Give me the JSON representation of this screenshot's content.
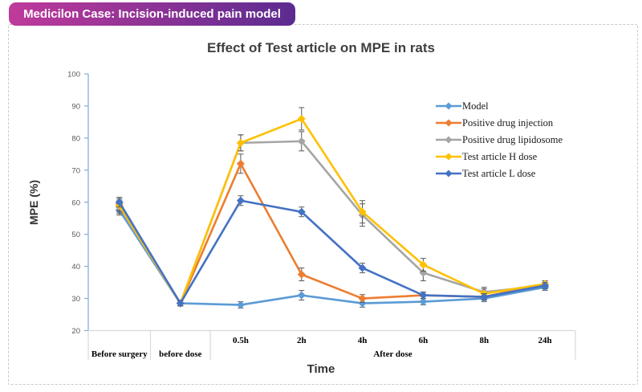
{
  "header": {
    "badge": "Medicilon Case: Incision-induced pain model"
  },
  "chart": {
    "title": "Effect of Test article on MPE in rats",
    "y_axis_label": "MPE (%)",
    "x_axis_label": "Time"
  },
  "colors": {
    "badge_gradient_start": "#bf3a9b",
    "badge_gradient_end": "#5b2b90",
    "y_axis": "#85addc",
    "x_axis": "#d9d9d9",
    "error_bar": "#595959"
  },
  "chart_data": {
    "type": "line",
    "title": "Effect of Test article on MPE in rats",
    "xlabel": "Time",
    "ylabel": "MPE (%)",
    "ylim": [
      20,
      100
    ],
    "y_ticks": [
      20,
      30,
      40,
      50,
      60,
      70,
      80,
      90,
      100
    ],
    "grid": false,
    "legend_position": "upper right",
    "categories": [
      "Before surgery",
      "before dose",
      "0.5h",
      "2h",
      "4h",
      "6h",
      "8h",
      "24h"
    ],
    "tick_row": [
      "",
      "",
      "0.5h",
      "2h",
      "4h",
      "6h",
      "8h",
      "24h"
    ],
    "group_row": [
      {
        "label": "Before surgery",
        "from": 0,
        "to": 0
      },
      {
        "label": "before dose",
        "from": 1,
        "to": 1
      },
      {
        "label": "After dose",
        "from": 2,
        "to": 7
      }
    ],
    "series": [
      {
        "name": "Model",
        "color": "#5B9BD5",
        "values": [
          57.5,
          28.5,
          28,
          31,
          28.5,
          29,
          30,
          33.5
        ],
        "errors": [
          1.5,
          0.8,
          1,
          1.5,
          1.2,
          1,
          1,
          1
        ]
      },
      {
        "name": "Positive drug injection",
        "color": "#ED7D31",
        "values": [
          59.5,
          28.5,
          72,
          37.5,
          30,
          31,
          30.5,
          34.5
        ],
        "errors": [
          2,
          0.8,
          3,
          2,
          1.2,
          1,
          1,
          1
        ]
      },
      {
        "name": "Positive drug lipidosome",
        "color": "#A5A5A5",
        "values": [
          58.5,
          28.5,
          78.5,
          79,
          56,
          38,
          32,
          34
        ],
        "errors": [
          2,
          0.8,
          2.5,
          3,
          3.5,
          2.5,
          1.5,
          1
        ]
      },
      {
        "name": "Test article H dose",
        "color": "#FFC000",
        "values": [
          59,
          28.5,
          78.5,
          86,
          57,
          40.5,
          31.5,
          34.5
        ],
        "errors": [
          2,
          0.8,
          2.5,
          3.5,
          3.5,
          2,
          1.5,
          1
        ]
      },
      {
        "name": "Test article L dose",
        "color": "#4472C4",
        "values": [
          60,
          28.5,
          60.5,
          57,
          39.5,
          31,
          30.5,
          34
        ],
        "errors": [
          1.5,
          0.8,
          1.5,
          1.5,
          1.5,
          1,
          1,
          1
        ]
      }
    ]
  }
}
